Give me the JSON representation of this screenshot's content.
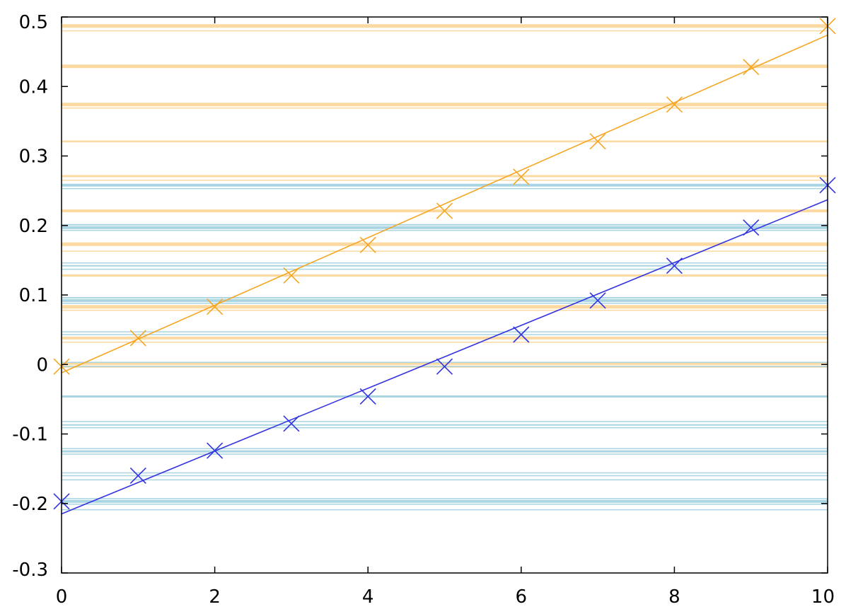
{
  "chart_data": {
    "type": "scatter",
    "title": "",
    "xlabel": "",
    "ylabel": "",
    "xlim": [
      0,
      10
    ],
    "ylim": [
      -0.3,
      0.5
    ],
    "grid": false,
    "x_ticks": [
      "0",
      "2",
      "4",
      "6",
      "8",
      "10"
    ],
    "y_ticks": [
      "0.5",
      "0.4",
      "0.3",
      "0.2",
      "0.1",
      "0",
      "-0.1",
      "-0.2",
      "-0.3"
    ],
    "series": [
      {
        "color": "#f5a623",
        "marker": "x",
        "x": [
          0,
          1,
          2,
          3,
          4,
          5,
          6,
          7,
          8,
          9,
          10
        ],
        "y": [
          -0.003,
          0.038,
          0.083,
          0.128,
          0.172,
          0.221,
          0.27,
          0.321,
          0.374,
          0.428,
          0.487
        ],
        "fit": [
          [
            0,
            -0.012
          ],
          [
            10,
            0.474
          ]
        ],
        "reference_lines": [
          {
            "y": 0.487,
            "width": 5
          },
          {
            "y": 0.48,
            "width": 1.5
          },
          {
            "y": 0.429,
            "width": 5
          },
          {
            "y": 0.374,
            "width": 5
          },
          {
            "y": 0.369,
            "width": 1.5
          },
          {
            "y": 0.321,
            "width": 2.5
          },
          {
            "y": 0.271,
            "width": 3
          },
          {
            "y": 0.265,
            "width": 1.5
          },
          {
            "y": 0.221,
            "width": 4
          },
          {
            "y": 0.173,
            "width": 5
          },
          {
            "y": 0.163,
            "width": 1.5
          },
          {
            "y": 0.128,
            "width": 3
          },
          {
            "y": 0.083,
            "width": 5
          },
          {
            "y": 0.078,
            "width": 1.5
          },
          {
            "y": 0.038,
            "width": 4
          },
          {
            "y": 0.032,
            "width": 1.5
          },
          {
            "y": 0.001,
            "width": 3
          },
          {
            "y": -0.003,
            "width": 3
          }
        ]
      },
      {
        "color": "#3333e0",
        "marker": "x",
        "x": [
          0,
          1,
          2,
          3,
          4,
          5,
          6,
          7,
          8,
          9,
          10
        ],
        "y": [
          -0.197,
          -0.16,
          -0.124,
          -0.085,
          -0.046,
          -0.003,
          0.043,
          0.092,
          0.142,
          0.197,
          0.258
        ],
        "fit": [
          [
            0,
            -0.215
          ],
          [
            10,
            0.237
          ]
        ],
        "reference_lines": [
          {
            "y": 0.258,
            "width": 4
          },
          {
            "y": 0.253,
            "width": 1.5
          },
          {
            "y": 0.201,
            "width": 2
          },
          {
            "y": 0.197,
            "width": 4
          },
          {
            "y": 0.193,
            "width": 1.5
          },
          {
            "y": 0.146,
            "width": 1.5
          },
          {
            "y": 0.142,
            "width": 2
          },
          {
            "y": 0.137,
            "width": 1.5
          },
          {
            "y": 0.096,
            "width": 2
          },
          {
            "y": 0.092,
            "width": 4
          },
          {
            "y": 0.088,
            "width": 1.5
          },
          {
            "y": 0.047,
            "width": 1.5
          },
          {
            "y": 0.043,
            "width": 1.5
          },
          {
            "y": 0.003,
            "width": 1.5
          },
          {
            "y": -0.003,
            "width": 1.5
          },
          {
            "y": -0.046,
            "width": 3
          },
          {
            "y": -0.082,
            "width": 1.5
          },
          {
            "y": -0.087,
            "width": 2
          },
          {
            "y": -0.091,
            "width": 1.5
          },
          {
            "y": -0.121,
            "width": 1.5
          },
          {
            "y": -0.125,
            "width": 3
          },
          {
            "y": -0.129,
            "width": 1.5
          },
          {
            "y": -0.156,
            "width": 1.5
          },
          {
            "y": -0.16,
            "width": 1.5
          },
          {
            "y": -0.166,
            "width": 1.5
          },
          {
            "y": -0.193,
            "width": 1.5
          },
          {
            "y": -0.197,
            "width": 4
          },
          {
            "y": -0.201,
            "width": 1.5
          },
          {
            "y": -0.209,
            "width": 1.5
          }
        ]
      }
    ],
    "colors": {
      "orange_reference": "#fbd9a0",
      "blue_reference": "#a9d4e2",
      "axis": "#000000"
    }
  }
}
